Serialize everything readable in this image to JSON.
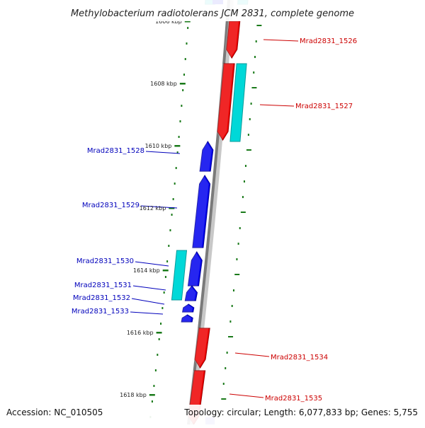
{
  "title": "Methylobacterium radiotolerans JCM 2831, complete genome",
  "footer": {
    "accession": "Accession: NC_010505",
    "summary": "Topology: circular; Length: 6,077,833 bp; Genes: 5,755"
  },
  "colors": {
    "forward": "#0000ee",
    "reverse": "#ee0000",
    "rna": "#00d8d8",
    "tick": "#1a7a1a",
    "backbone": "#7a7a7a",
    "forward_label": "#0000bb",
    "reverse_label": "#cc0000"
  },
  "scale_labels": [
    "1606 kbp",
    "1608 kbp",
    "1610 kbp",
    "1612 kbp",
    "1614 kbp",
    "1616 kbp",
    "1618 kbp"
  ],
  "genes": [
    {
      "label": "Mrad2831_1526",
      "strand": "reverse"
    },
    {
      "label": "Mrad2831_1527",
      "strand": "reverse"
    },
    {
      "label": "Mrad2831_1528",
      "strand": "forward"
    },
    {
      "label": "Mrad2831_1529",
      "strand": "forward"
    },
    {
      "label": "Mrad2831_1530",
      "strand": "forward"
    },
    {
      "label": "Mrad2831_1531",
      "strand": "forward"
    },
    {
      "label": "Mrad2831_1532",
      "strand": "forward"
    },
    {
      "label": "Mrad2831_1533",
      "strand": "forward"
    },
    {
      "label": "Mrad2831_1534",
      "strand": "reverse"
    },
    {
      "label": "Mrad2831_1535",
      "strand": "reverse"
    }
  ]
}
